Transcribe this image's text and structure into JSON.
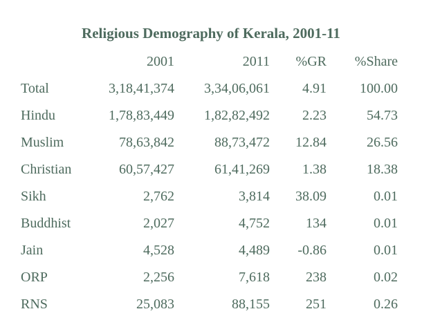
{
  "title": "Religious Demography of Kerala, 2001-11",
  "columns": [
    "",
    "2001",
    "2011",
    "%GR",
    "%Share"
  ],
  "rows": [
    [
      "Total",
      "3,18,41,374",
      "3,34,06,061",
      "4.91",
      "100.00"
    ],
    [
      "Hindu",
      "1,78,83,449",
      "1,82,82,492",
      "2.23",
      "54.73"
    ],
    [
      "Muslim",
      "78,63,842",
      "88,73,472",
      "12.84",
      "26.56"
    ],
    [
      "Christian",
      "60,57,427",
      "61,41,269",
      "1.38",
      "18.38"
    ],
    [
      "Sikh",
      "2,762",
      "3,814",
      "38.09",
      "0.01"
    ],
    [
      "Buddhist",
      "2,027",
      "4,752",
      "134",
      "0.01"
    ],
    [
      "Jain",
      "4,528",
      "4,489",
      "-0.86",
      "0.01"
    ],
    [
      "ORP",
      "2,256",
      "7,618",
      "238",
      "0.02"
    ],
    [
      "RNS",
      "25,083",
      "88,155",
      "251",
      "0.26"
    ]
  ],
  "colors": {
    "text": "#4e6b5e",
    "background": "#ffffff"
  }
}
